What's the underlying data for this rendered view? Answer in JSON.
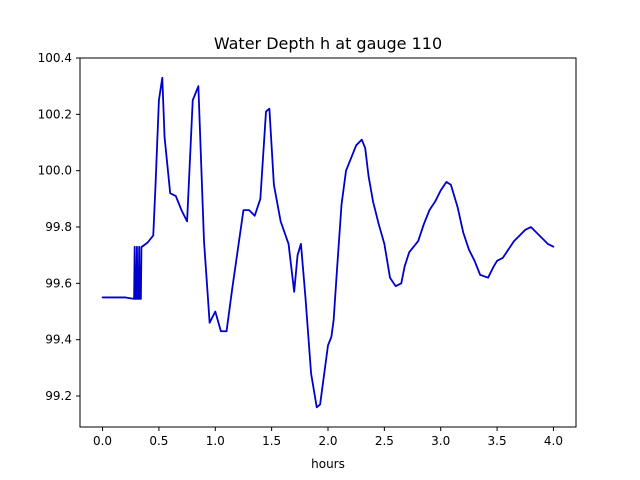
{
  "chart_data": {
    "type": "line",
    "title": "Water Depth h at gauge 110",
    "xlabel": "hours",
    "ylabel": "",
    "xlim": [
      -0.2,
      4.2
    ],
    "ylim": [
      99.09,
      100.4
    ],
    "xticks": [
      0.0,
      0.5,
      1.0,
      1.5,
      2.0,
      2.5,
      3.0,
      3.5,
      4.0
    ],
    "xtick_labels": [
      "0.0",
      "0.5",
      "1.0",
      "1.5",
      "2.0",
      "2.5",
      "3.0",
      "3.5",
      "4.0"
    ],
    "yticks": [
      99.2,
      99.4,
      99.6,
      99.8,
      100.0,
      100.2,
      100.4
    ],
    "ytick_labels": [
      "99.2",
      "99.4",
      "99.6",
      "99.8",
      "100.0",
      "100.2",
      "100.4"
    ],
    "grid": false,
    "legend": "none",
    "series": [
      {
        "color": "#0000cc",
        "x": [
          0.0,
          0.1,
          0.2,
          0.28,
          0.285,
          0.29,
          0.3,
          0.305,
          0.31,
          0.32,
          0.325,
          0.33,
          0.34,
          0.345,
          0.35,
          0.4,
          0.45,
          0.47,
          0.5,
          0.53,
          0.55,
          0.6,
          0.65,
          0.7,
          0.75,
          0.8,
          0.85,
          0.9,
          0.95,
          1.0,
          1.05,
          1.1,
          1.15,
          1.2,
          1.25,
          1.3,
          1.35,
          1.4,
          1.45,
          1.48,
          1.52,
          1.58,
          1.65,
          1.7,
          1.73,
          1.76,
          1.8,
          1.85,
          1.9,
          1.93,
          1.96,
          2.0,
          2.03,
          2.05,
          2.08,
          2.12,
          2.16,
          2.2,
          2.25,
          2.3,
          2.33,
          2.36,
          2.4,
          2.45,
          2.5,
          2.55,
          2.6,
          2.65,
          2.68,
          2.72,
          2.76,
          2.8,
          2.85,
          2.9,
          2.95,
          3.0,
          3.05,
          3.09,
          3.15,
          3.2,
          3.25,
          3.3,
          3.35,
          3.42,
          3.47,
          3.5,
          3.55,
          3.6,
          3.65,
          3.7,
          3.75,
          3.8,
          3.85,
          3.9,
          3.95,
          4.0
        ],
        "y": [
          99.55,
          99.55,
          99.55,
          99.545,
          99.73,
          99.545,
          99.545,
          99.73,
          99.545,
          99.545,
          99.73,
          99.545,
          99.545,
          99.73,
          99.73,
          99.745,
          99.77,
          99.95,
          100.25,
          100.33,
          100.12,
          99.92,
          99.91,
          99.86,
          99.82,
          100.25,
          100.3,
          99.75,
          99.46,
          99.5,
          99.43,
          99.43,
          99.58,
          99.72,
          99.86,
          99.86,
          99.84,
          99.9,
          100.21,
          100.22,
          99.95,
          99.82,
          99.74,
          99.57,
          99.7,
          99.74,
          99.55,
          99.28,
          99.16,
          99.17,
          99.26,
          99.38,
          99.41,
          99.47,
          99.65,
          99.88,
          100.0,
          100.04,
          100.09,
          100.11,
          100.08,
          99.98,
          99.89,
          99.81,
          99.74,
          99.62,
          99.59,
          99.6,
          99.66,
          99.71,
          99.73,
          99.75,
          99.81,
          99.86,
          99.89,
          99.93,
          99.96,
          99.95,
          99.87,
          99.78,
          99.72,
          99.68,
          99.63,
          99.62,
          99.66,
          99.68,
          99.69,
          99.72,
          99.75,
          99.77,
          99.79,
          99.8,
          99.78,
          99.76,
          99.74,
          99.73
        ]
      }
    ]
  }
}
